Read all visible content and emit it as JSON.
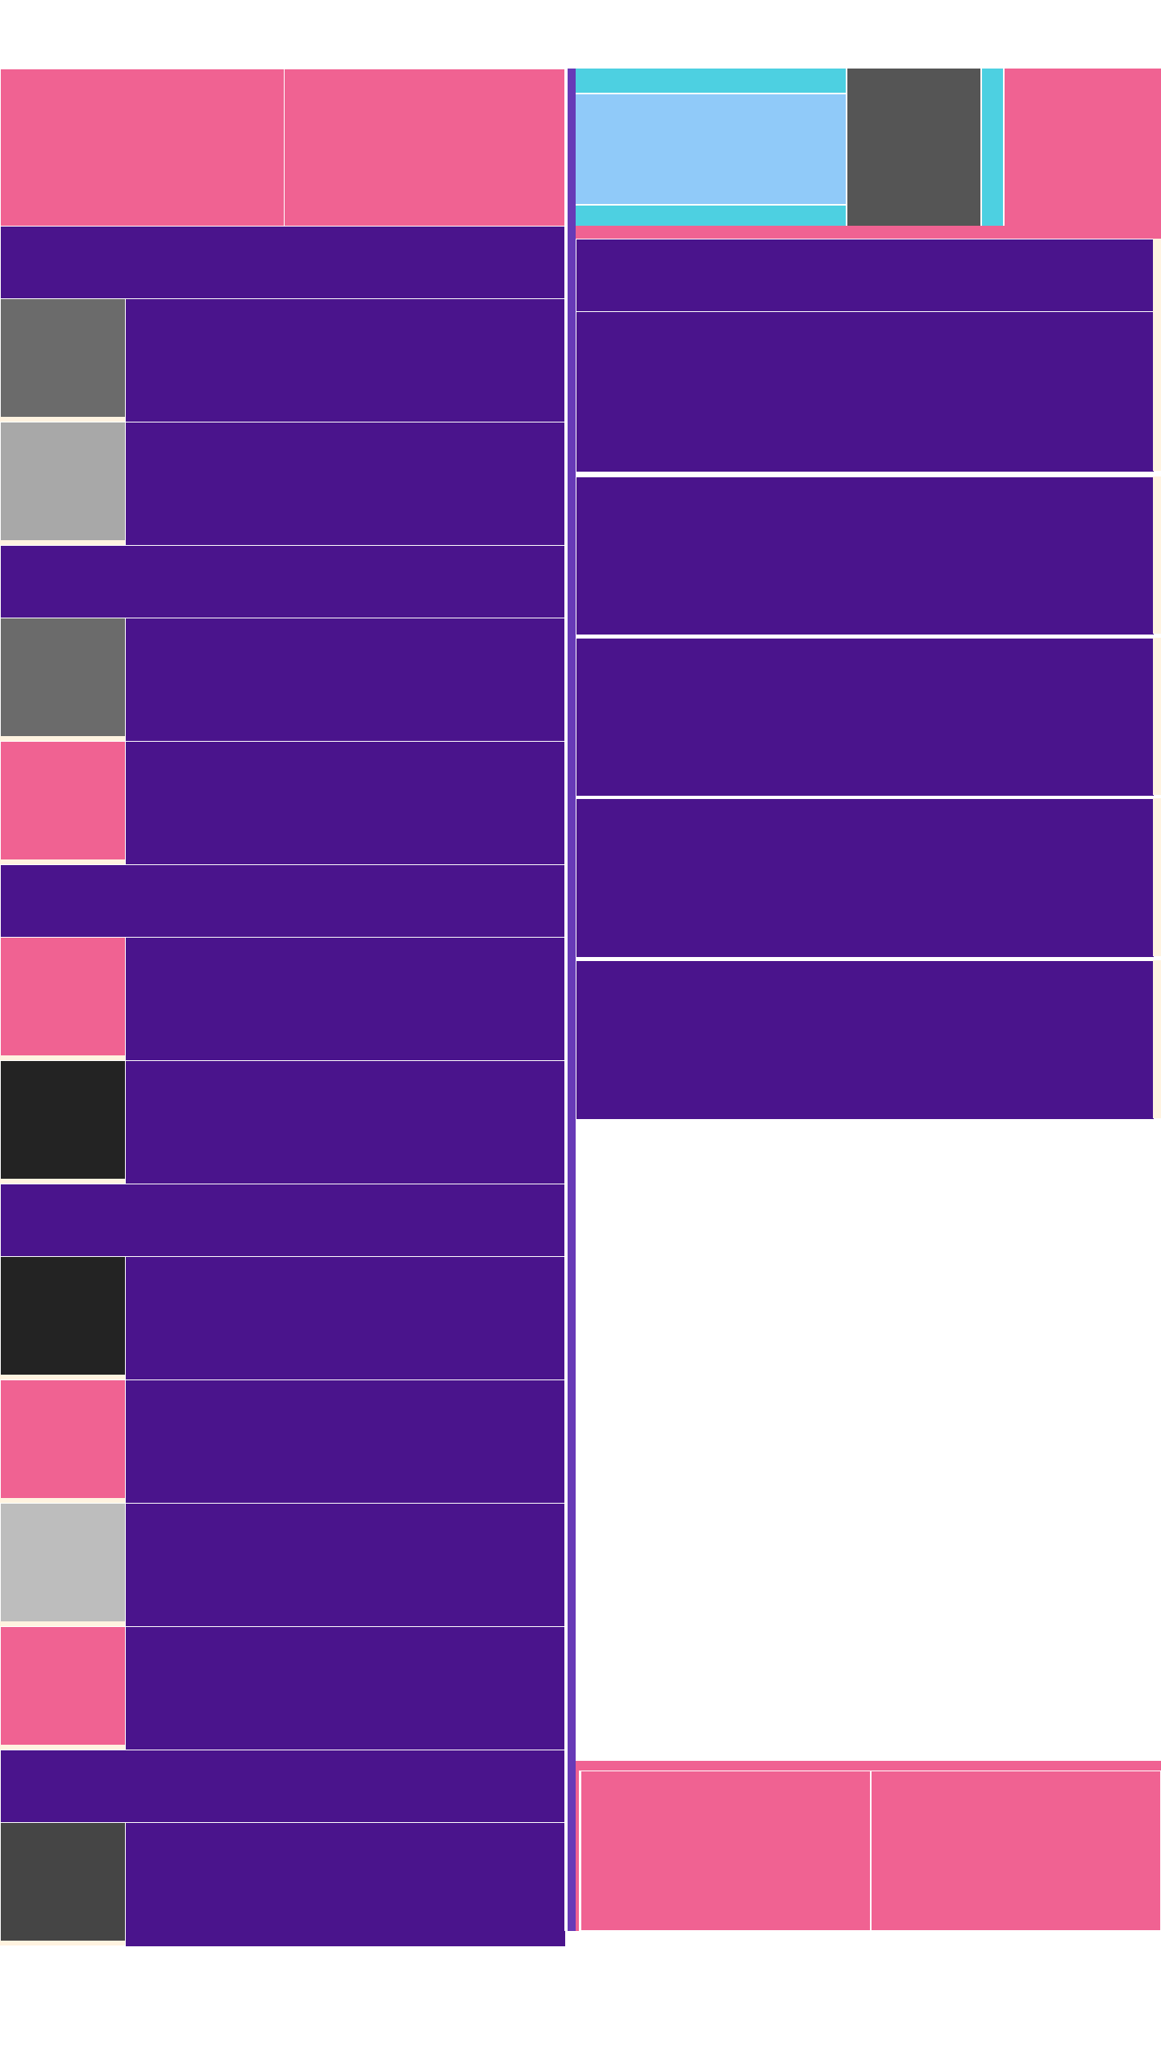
{
  "colors": {
    "pink": "#f06292",
    "purple": "#4a148c",
    "cyan": "#4dd0e1",
    "light_blue": "#90caf9",
    "cream": "#fff3e0",
    "dark_gray": "#555555",
    "accent_divider": "#673ab7"
  },
  "left": {
    "hero_tiles": [
      "",
      ""
    ],
    "sections": [
      {
        "header": "",
        "rows": [
          {
            "thumb": "#6b6b6b",
            "text": ""
          },
          {
            "thumb": "#a8a8a8",
            "text": ""
          }
        ]
      },
      {
        "header": "",
        "rows": [
          {
            "thumb": "#6b6b6b",
            "text": ""
          },
          {
            "thumb": "#f06292",
            "text": ""
          }
        ]
      },
      {
        "header": "",
        "rows": [
          {
            "thumb": "#f06292",
            "text": ""
          },
          {
            "thumb": "#232323",
            "text": ""
          }
        ]
      },
      {
        "header": "",
        "rows": [
          {
            "thumb": "#232323",
            "text": ""
          },
          {
            "thumb": "#f06292",
            "text": ""
          },
          {
            "thumb": "#bdbdbd",
            "text": ""
          },
          {
            "thumb": "#f06292",
            "text": ""
          }
        ]
      },
      {
        "header": "",
        "rows": [
          {
            "thumb": "#454545",
            "text": ""
          }
        ]
      }
    ]
  },
  "right": {
    "header_banner": "",
    "cards": [
      "",
      "",
      "",
      "",
      "",
      ""
    ],
    "bottom_tiles": [
      "",
      ""
    ]
  }
}
